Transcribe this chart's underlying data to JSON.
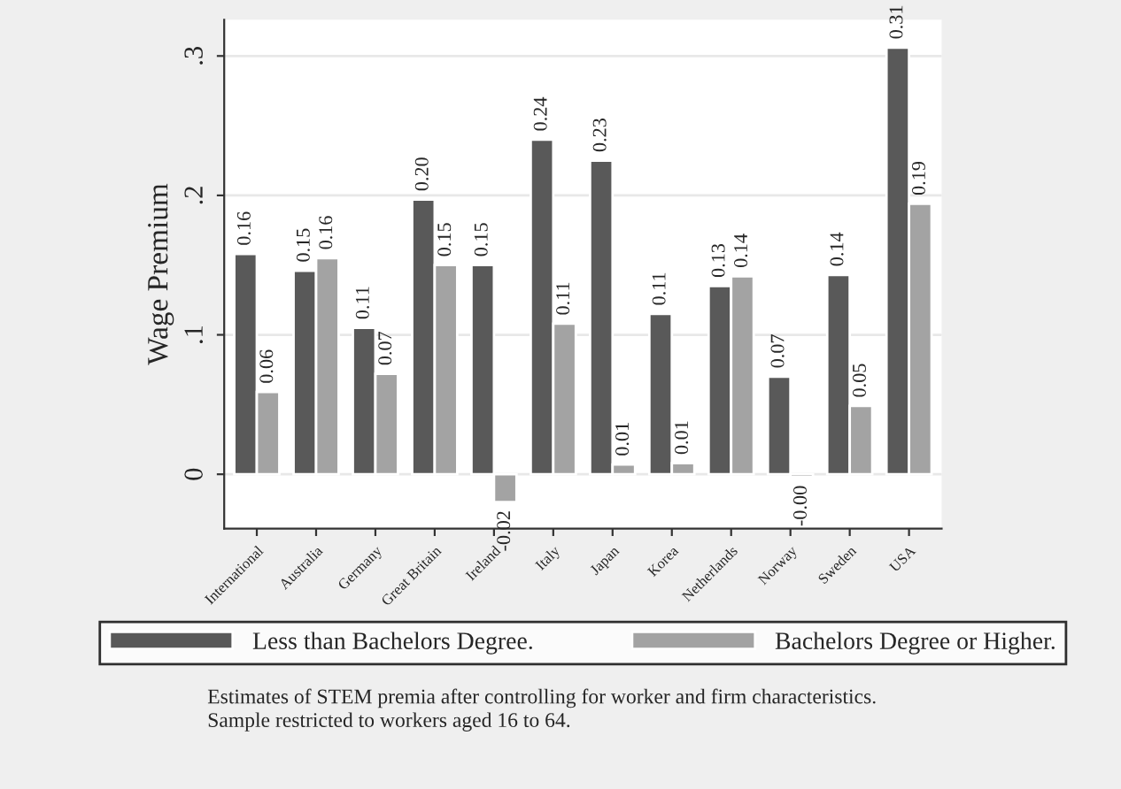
{
  "chart_data": {
    "type": "bar",
    "ylabel": "Wage Premium",
    "categories": [
      "International",
      "Australia",
      "Germany",
      "Great Britain",
      "Ireland",
      "Italy",
      "Japan",
      "Korea",
      "Netherlands",
      "Norway",
      "Sweden",
      "USA"
    ],
    "series": [
      {
        "name": "Less than Bachelors Degree.",
        "color": "#595959",
        "values": [
          0.158,
          0.146,
          0.105,
          0.197,
          0.15,
          0.24,
          0.225,
          0.115,
          0.135,
          0.07,
          0.143,
          0.306
        ],
        "value_labels": [
          "0.16",
          "0.15",
          "0.11",
          "0.20",
          "0.15",
          "0.24",
          "0.23",
          "0.11",
          "0.13",
          "0.07",
          "0.14",
          "0.31"
        ]
      },
      {
        "name": "Bachelors Degree or Higher.",
        "color": "#a3a3a3",
        "values": [
          0.059,
          0.155,
          0.072,
          0.15,
          -0.02,
          0.108,
          0.007,
          0.008,
          0.142,
          -0.002,
          0.049,
          0.194
        ],
        "value_labels": [
          "0.06",
          "0.16",
          "0.07",
          "0.15",
          "-0.02",
          "0.11",
          "0.01",
          "0.01",
          "0.14",
          "-0.00",
          "0.05",
          "0.19"
        ]
      }
    ],
    "ylim": [
      -0.039,
      0.326
    ],
    "yticks": [
      0,
      {
        "value": 0.1,
        "label": ".1"
      },
      {
        "value": 0.2,
        "label": ".2"
      },
      {
        "value": 0.3,
        "label": ".3"
      }
    ],
    "grid": "y",
    "legend": "bottom",
    "annotations": [
      "Estimates of STEM premia after controlling for worker and firm characteristics.",
      "Sample restricted to workers aged 16 to 64."
    ]
  }
}
